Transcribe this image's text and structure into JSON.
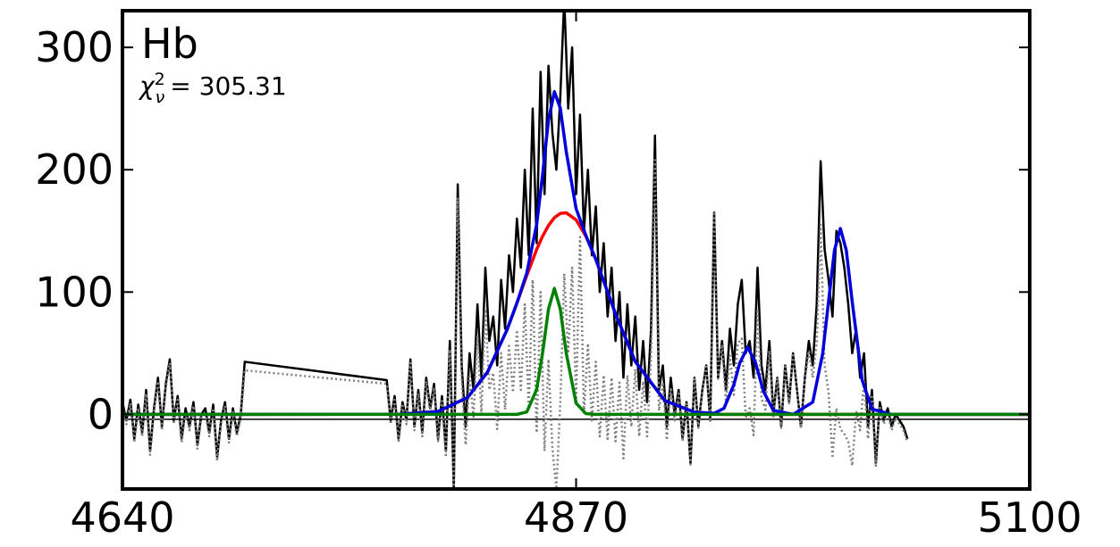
{
  "chart_data": {
    "type": "line",
    "annotation": {
      "label": "Hb",
      "stat_symbol": "χ",
      "stat_superscript": "2",
      "stat_subscript": "ν",
      "stat_text": "= 305.31"
    },
    "xlim": [
      4640,
      5100
    ],
    "xticks": [
      4640,
      4870,
      5100
    ],
    "ylim": [
      -61,
      330
    ],
    "yticks": [
      0,
      100,
      200,
      300
    ],
    "series": [
      {
        "color": "#000000",
        "width": 1.5,
        "x": [
          4640,
          5100
        ],
        "values": [
          -4,
          -4
        ]
      },
      {
        "color": "#000000",
        "width": 2.5,
        "x": [
          4640,
          4642,
          4644,
          4646,
          4648,
          4650,
          4652,
          4654,
          4656,
          4658,
          4660,
          4662,
          4664,
          4666,
          4668,
          4670,
          4672,
          4674,
          4676,
          4678,
          4680,
          4682,
          4684,
          4686,
          4688,
          4690,
          4692,
          4694,
          4696,
          4698,
          4700,
          4702,
          4774,
          4776,
          4778,
          4780,
          4782,
          4784,
          4786,
          4788,
          4790,
          4792,
          4794,
          4796,
          4798,
          4800,
          4802,
          4804,
          4806,
          4808,
          4810,
          4812,
          4814,
          4816,
          4818,
          4820,
          4822,
          4824,
          4826,
          4828,
          4830,
          4832,
          4834,
          4836,
          4838,
          4840,
          4842,
          4844,
          4846,
          4848,
          4850,
          4852,
          4854,
          4856,
          4858,
          4860,
          4862,
          4864,
          4866,
          4868,
          4870,
          4872,
          4874,
          4876,
          4878,
          4880,
          4882,
          4884,
          4886,
          4888,
          4890,
          4892,
          4894,
          4896,
          4898,
          4900,
          4902,
          4904,
          4906,
          4908,
          4910,
          4912,
          4914,
          4916,
          4918,
          4920,
          4922,
          4924,
          4926,
          4928,
          4930,
          4932,
          4934,
          4936,
          4938,
          4940,
          4942,
          4944,
          4946,
          4948,
          4950,
          4952,
          4954,
          4956,
          4958,
          4960,
          4962,
          4964,
          4966,
          4968,
          4970,
          4972,
          4974,
          4976,
          4978,
          4980,
          4982,
          4984,
          4986,
          4988,
          4990,
          4992,
          4994,
          4996,
          4998,
          5000,
          5002,
          5004,
          5006,
          5008,
          5010,
          5012,
          5014,
          5016,
          5018,
          5020,
          5022,
          5024,
          5026,
          5028,
          5030,
          5032,
          5034,
          5036,
          5038
        ],
        "values": [
          10,
          -5,
          12,
          -20,
          8,
          -15,
          20,
          -30,
          5,
          30,
          -10,
          25,
          45,
          -5,
          15,
          -20,
          5,
          -10,
          10,
          -25,
          0,
          5,
          -15,
          8,
          -35,
          -5,
          10,
          -20,
          5,
          -15,
          0,
          43,
          28,
          -5,
          15,
          -20,
          10,
          -5,
          45,
          -10,
          20,
          -15,
          30,
          5,
          25,
          -20,
          15,
          -30,
          60,
          -61,
          188,
          40,
          -10,
          50,
          20,
          90,
          30,
          120,
          60,
          80,
          40,
          110,
          70,
          130,
          100,
          160,
          120,
          200,
          130,
          250,
          140,
          280,
          180,
          285,
          230,
          200,
          260,
          340,
          250,
          300,
          180,
          245,
          150,
          200,
          130,
          170,
          100,
          140,
          80,
          120,
          60,
          100,
          30,
          90,
          40,
          80,
          20,
          60,
          10,
          70,
          228,
          20,
          40,
          -10,
          30,
          0,
          20,
          -20,
          10,
          -40,
          30,
          -10,
          20,
          40,
          -5,
          165,
          30,
          60,
          20,
          70,
          40,
          90,
          110,
          50,
          60,
          30,
          120,
          40,
          20,
          60,
          0,
          30,
          -10,
          40,
          10,
          50,
          20,
          -10,
          30,
          60,
          40,
          90,
          207,
          135,
          110,
          80,
          150,
          140,
          120,
          90,
          50,
          70,
          30,
          50,
          -10,
          20,
          -40,
          10,
          -5,
          5,
          -10,
          0,
          -5,
          -10,
          -20
        ]
      },
      {
        "color": "#808080",
        "width": 2.5,
        "dash": true,
        "x": [
          4640,
          4642,
          4644,
          4646,
          4648,
          4650,
          4652,
          4654,
          4656,
          4658,
          4660,
          4662,
          4664,
          4666,
          4668,
          4670,
          4672,
          4674,
          4676,
          4678,
          4680,
          4682,
          4684,
          4686,
          4688,
          4690,
          4692,
          4694,
          4696,
          4698,
          4700,
          4702,
          4774,
          4776,
          4778,
          4780,
          4782,
          4784,
          4786,
          4788,
          4790,
          4792,
          4794,
          4796,
          4798,
          4800,
          4802,
          4804,
          4806,
          4808,
          4810,
          4812,
          4814,
          4816,
          4818,
          4820,
          4822,
          4824,
          4826,
          4828,
          4830,
          4832,
          4834,
          4836,
          4838,
          4840,
          4842,
          4844,
          4846,
          4848,
          4850,
          4852,
          4854,
          4856,
          4858,
          4860,
          4862,
          4864,
          4866,
          4868,
          4870,
          4872,
          4874,
          4876,
          4878,
          4880,
          4882,
          4884,
          4886,
          4888,
          4890,
          4892,
          4894,
          4896,
          4898,
          4900,
          4902,
          4904,
          4906,
          4908,
          4910,
          4912,
          4914,
          4916,
          4918,
          4920,
          4922,
          4924,
          4926,
          4928,
          4930,
          4932,
          4934,
          4936,
          4938,
          4940,
          4942,
          4944,
          4946,
          4948,
          4950,
          4952,
          4954,
          4956,
          4958,
          4960,
          4962,
          4964,
          4966,
          4968,
          4970,
          4972,
          4974,
          4976,
          4978,
          4980,
          4982,
          4984,
          4986,
          4988,
          4990,
          4992,
          4994,
          4996,
          4998,
          5000,
          5002,
          5004,
          5006,
          5008,
          5010,
          5012,
          5014,
          5016,
          5018,
          5020,
          5022,
          5024,
          5026,
          5028,
          5030,
          5032,
          5034,
          5036,
          5038
        ],
        "values": [
          7,
          -8,
          9,
          -23,
          5,
          -18,
          17,
          -33,
          2,
          27,
          -13,
          22,
          42,
          -8,
          12,
          -23,
          2,
          -13,
          7,
          -28,
          -3,
          2,
          -18,
          5,
          -38,
          -8,
          7,
          -23,
          2,
          -18,
          -3,
          36,
          25,
          -8,
          12,
          -23,
          7,
          -8,
          42,
          -13,
          17,
          -18,
          27,
          2,
          22,
          -22,
          11,
          -35,
          53,
          -61,
          177,
          27,
          -25,
          31,
          -2,
          64,
          0,
          86,
          20,
          34,
          -12,
          50,
          4,
          56,
          18,
          69,
          20,
          90,
          5,
          110,
          -15,
          100,
          -30,
          45,
          -28,
          -61,
          10,
          115,
          50,
          120,
          12,
          145,
          0,
          58,
          -5,
          43,
          -18,
          32,
          -20,
          30,
          -22,
          26,
          -36,
          32,
          -10,
          37,
          -18,
          27,
          -18,
          46,
          208,
          3,
          26,
          -21,
          22,
          -5,
          17,
          -22,
          9,
          -41,
          29,
          -11,
          19,
          39,
          -6,
          164,
          29,
          57,
          10,
          48,
          16,
          58,
          62,
          -3,
          5,
          -17,
          86,
          13,
          4,
          52,
          -3,
          29,
          -11,
          39,
          9,
          50,
          20,
          -11,
          28,
          52,
          30,
          58,
          155,
          40,
          18,
          -34,
          5,
          -12,
          -16,
          -22,
          -42,
          3,
          -13,
          28,
          -20,
          16,
          -43,
          7,
          -8,
          2,
          -13,
          -3,
          -8,
          -13,
          -23
        ]
      },
      {
        "color": "#ff0000",
        "width": 3.5,
        "x": [
          4640,
          4780,
          4800,
          4815,
          4825,
          4835,
          4840,
          4845,
          4850,
          4853,
          4856,
          4859,
          4862,
          4865,
          4870,
          4875,
          4880,
          4890,
          4900,
          4915,
          4930,
          4940,
          4945,
          4950,
          4953,
          4957,
          4961,
          4965,
          4970,
          4980,
          4990,
          4995,
          4998,
          5001,
          5004,
          5007,
          5010,
          5015,
          5020,
          5030,
          5100
        ],
        "values": [
          0,
          0.1,
          2.4,
          13.8,
          34.3,
          69.2,
          91,
          113.6,
          134.8,
          145.6,
          154.4,
          160.8,
          164.3,
          164.8,
          159,
          145.6,
          126.7,
          82.1,
          43.2,
          11.2,
          1.8,
          0.4,
          0,
          0,
          0,
          0,
          0,
          0,
          0,
          0,
          0,
          0,
          0,
          0,
          0,
          0,
          0,
          0,
          0,
          0,
          0
        ]
      },
      {
        "color": "#0000dd",
        "width": 3.5,
        "x": [
          4640,
          4780,
          4800,
          4815,
          4825,
          4835,
          4840,
          4845,
          4850,
          4853,
          4856,
          4859,
          4862,
          4865,
          4870,
          4875,
          4880,
          4890,
          4900,
          4915,
          4930,
          4940,
          4945,
          4950,
          4953,
          4957,
          4961,
          4965,
          4970,
          4980,
          4990,
          4995,
          4998,
          5001,
          5004,
          5007,
          5010,
          5015,
          5020,
          5030,
          5100
        ],
        "values": [
          0,
          0.1,
          2.4,
          13.8,
          34.3,
          69.2,
          91,
          115.6,
          155.2,
          195.7,
          240.4,
          263.8,
          250.3,
          214.9,
          168.2,
          146.2,
          126.7,
          82.1,
          43.2,
          11.2,
          1.8,
          0.9,
          5,
          24.3,
          42.1,
          55,
          42.1,
          18.9,
          3.3,
          0,
          10,
          49.4,
          92.2,
          134.1,
          152,
          134.1,
          92.2,
          28.3,
          4.3,
          0,
          0
        ]
      },
      {
        "color": "#008000",
        "width": 3.5,
        "x": [
          4640,
          4780,
          4800,
          4815,
          4825,
          4835,
          4840,
          4845,
          4850,
          4853,
          4856,
          4859,
          4862,
          4865,
          4870,
          4875,
          4880,
          4890,
          4900,
          4915,
          4930,
          4940,
          4945,
          4950,
          4953,
          4957,
          4961,
          4965,
          4970,
          4980,
          4990,
          4995,
          4998,
          5001,
          5004,
          5007,
          5010,
          5015,
          5020,
          5030,
          5100
        ],
        "values": [
          0,
          0,
          0,
          0,
          0,
          0,
          0,
          2,
          20.4,
          50.1,
          86,
          103,
          86,
          50.1,
          9.2,
          0.6,
          0,
          0,
          0,
          0,
          0,
          0,
          0,
          0,
          0,
          0,
          0,
          0,
          0,
          0,
          0,
          0,
          0,
          0,
          0,
          0,
          0,
          0,
          0,
          0,
          0
        ]
      }
    ]
  }
}
